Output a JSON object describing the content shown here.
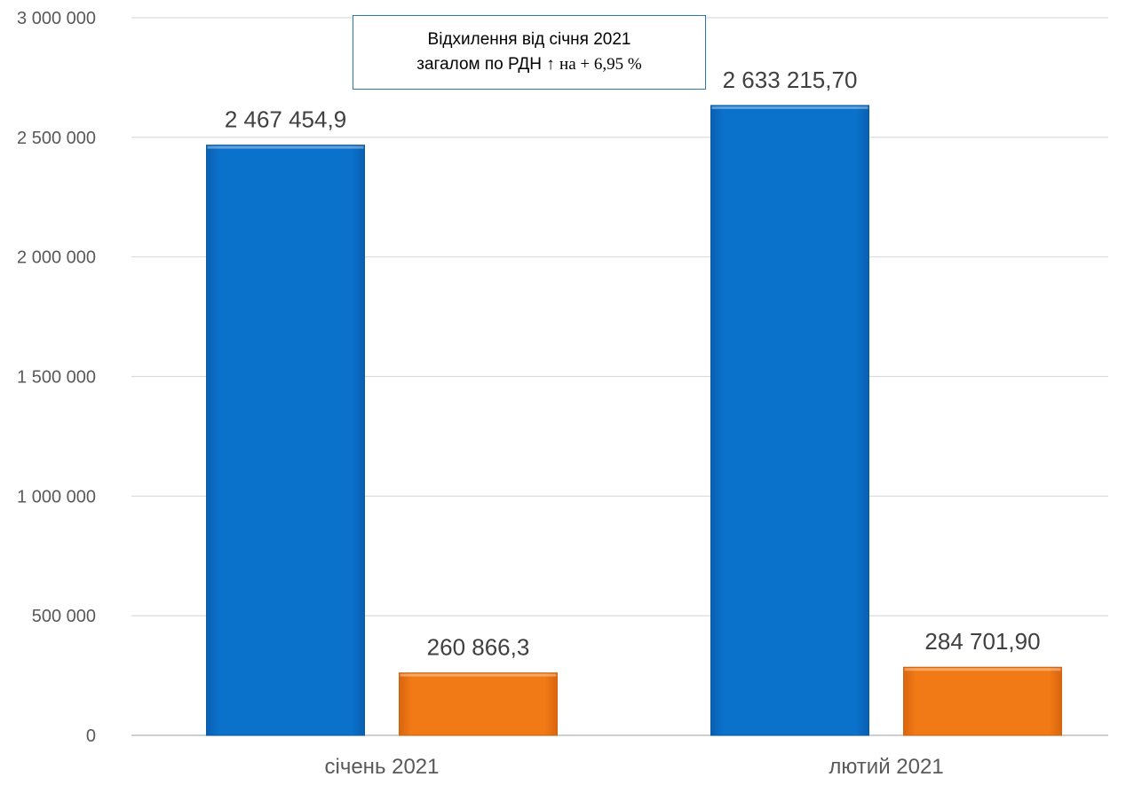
{
  "chart_data": {
    "type": "bar",
    "title": "",
    "xlabel": "",
    "ylabel": "",
    "categories": [
      "січень 2021",
      "лютий 2021"
    ],
    "series": [
      {
        "values": [
          2467454.9,
          2633215.7
        ],
        "labels": [
          "2 467 454,9",
          "2 633 215,70"
        ],
        "color": "#0a70c8"
      },
      {
        "values": [
          260866.3,
          284701.9
        ],
        "labels": [
          "260 866,3",
          "284 701,90"
        ],
        "color": "#f07818"
      }
    ],
    "ylim": [
      0,
      3000000
    ],
    "yticks": [
      0,
      500000,
      1000000,
      1500000,
      2000000,
      2500000,
      3000000
    ],
    "ytick_labels": [
      "0",
      "500 000",
      "1 000 000",
      "1 500 000",
      "2 000 000",
      "2 500 000",
      "3 000 000"
    ],
    "grid": true,
    "legend": "none",
    "annotation": {
      "line1": "Відхилення від січня 2021",
      "line2_prefix": "загалом по РДН",
      "line2_arrow": "↑",
      "line2_suffix": "на + 6,95 %",
      "border_color": "#2e75b6"
    }
  }
}
